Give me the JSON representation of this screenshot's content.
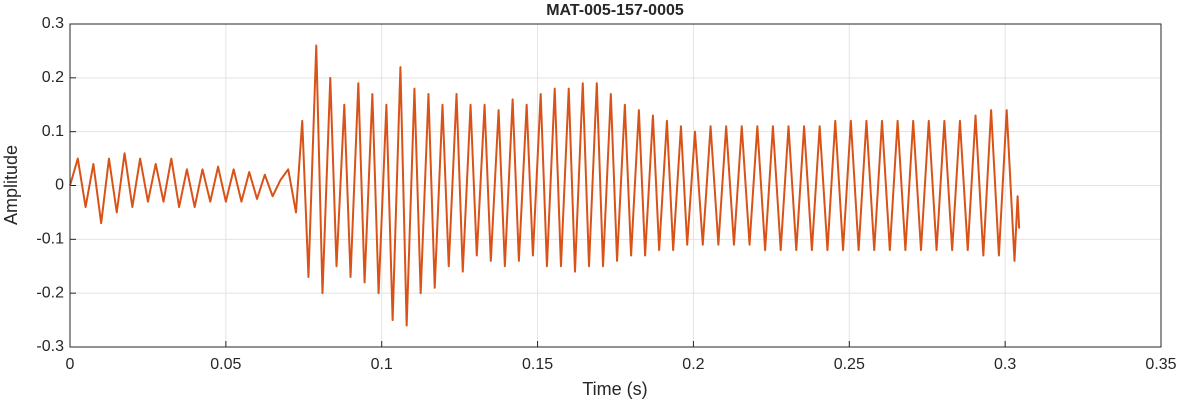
{
  "chart_data": {
    "type": "line",
    "title": "MAT-005-157-0005",
    "xlabel": "Time (s)",
    "ylabel": "Amplitude",
    "x": [
      0,
      0.0025,
      0.005,
      0.0075,
      0.01,
      0.0125,
      0.015,
      0.0175,
      0.02,
      0.0225,
      0.025,
      0.0275,
      0.03,
      0.0325,
      0.035,
      0.0375,
      0.04,
      0.0425,
      0.045,
      0.0475,
      0.05,
      0.0525,
      0.055,
      0.0575,
      0.06,
      0.0625,
      0.065,
      0.0675,
      0.07,
      0.0725,
      0.0745,
      0.0765,
      0.079,
      0.081,
      0.0835,
      0.0855,
      0.088,
      0.09,
      0.0925,
      0.0945,
      0.097,
      0.099,
      0.1015,
      0.1035,
      0.106,
      0.108,
      0.1105,
      0.1125,
      0.115,
      0.117,
      0.1195,
      0.1215,
      0.124,
      0.126,
      0.1285,
      0.1305,
      0.133,
      0.135,
      0.1375,
      0.1395,
      0.142,
      0.144,
      0.1465,
      0.1485,
      0.151,
      0.153,
      0.1555,
      0.1575,
      0.16,
      0.162,
      0.1645,
      0.1665,
      0.169,
      0.171,
      0.1735,
      0.1755,
      0.178,
      0.18,
      0.1825,
      0.1845,
      0.187,
      0.189,
      0.1915,
      0.1935,
      0.196,
      0.198,
      0.2005,
      0.203,
      0.2055,
      0.208,
      0.2105,
      0.213,
      0.2155,
      0.218,
      0.2205,
      0.223,
      0.2255,
      0.228,
      0.2305,
      0.233,
      0.2355,
      0.238,
      0.2405,
      0.243,
      0.2455,
      0.248,
      0.2505,
      0.253,
      0.2555,
      0.258,
      0.2605,
      0.263,
      0.2655,
      0.268,
      0.2705,
      0.273,
      0.2755,
      0.278,
      0.2805,
      0.283,
      0.2855,
      0.288,
      0.2905,
      0.293,
      0.2955,
      0.298,
      0.3005,
      0.303,
      0.304,
      0.3045
    ],
    "series": [
      {
        "color": "#d95319",
        "values": [
          0,
          0.05,
          -0.04,
          0.04,
          -0.07,
          0.05,
          -0.05,
          0.06,
          -0.04,
          0.05,
          -0.03,
          0.04,
          -0.03,
          0.05,
          -0.04,
          0.03,
          -0.04,
          0.03,
          -0.03,
          0.035,
          -0.03,
          0.03,
          -0.03,
          0.025,
          -0.025,
          0.02,
          -0.02,
          0.01,
          0.03,
          -0.05,
          0.12,
          -0.17,
          0.26,
          -0.2,
          0.2,
          -0.15,
          0.15,
          -0.17,
          0.19,
          -0.18,
          0.17,
          -0.2,
          0.15,
          -0.25,
          0.22,
          -0.26,
          0.18,
          -0.2,
          0.17,
          -0.19,
          0.15,
          -0.15,
          0.17,
          -0.16,
          0.15,
          -0.13,
          0.15,
          -0.14,
          0.14,
          -0.15,
          0.16,
          -0.14,
          0.15,
          -0.13,
          0.17,
          -0.15,
          0.18,
          -0.15,
          0.18,
          -0.16,
          0.19,
          -0.15,
          0.19,
          -0.15,
          0.17,
          -0.14,
          0.15,
          -0.13,
          0.14,
          -0.13,
          0.13,
          -0.12,
          0.12,
          -0.12,
          0.11,
          -0.11,
          0.1,
          -0.11,
          0.11,
          -0.11,
          0.11,
          -0.11,
          0.11,
          -0.11,
          0.11,
          -0.12,
          0.11,
          -0.12,
          0.11,
          -0.12,
          0.11,
          -0.12,
          0.11,
          -0.12,
          0.12,
          -0.12,
          0.12,
          -0.12,
          0.12,
          -0.12,
          0.12,
          -0.12,
          0.12,
          -0.12,
          0.12,
          -0.12,
          0.12,
          -0.12,
          0.12,
          -0.12,
          0.12,
          -0.12,
          0.13,
          -0.13,
          0.14,
          -0.13,
          0.14,
          -0.14,
          -0.02,
          -0.08
        ]
      }
    ],
    "xlim": [
      0,
      0.35
    ],
    "xticks": [
      0,
      0.05,
      0.1,
      0.15,
      0.2,
      0.25,
      0.3,
      0.35
    ],
    "ylim": [
      -0.3,
      0.3
    ],
    "yticks": [
      -0.3,
      -0.2,
      -0.1,
      0,
      0.1,
      0.2,
      0.3
    ],
    "grid": true
  }
}
